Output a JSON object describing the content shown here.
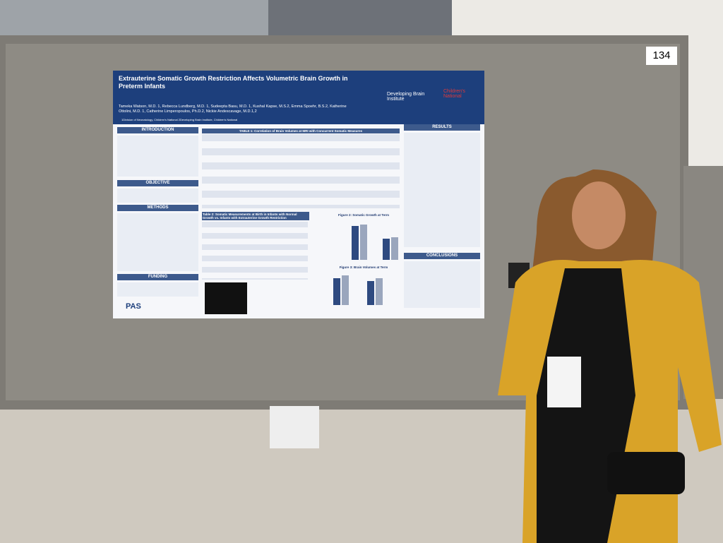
{
  "booth_number": "134",
  "poster": {
    "title": "Extrauterine Somatic Growth Restriction Affects Volumetric Brain Growth in Preterm Infants",
    "authors": "Tameka Watson, M.D. 1, Rebecca Lundberg, M.D. 1, Sudeepta Basu, M.D. 1, Kushal Kapse, M.S.2, Emma Spoehr, B.S.2, Katherine Ottolini, M.D. 1, Catherine Limperopoulos, Ph.D.2, Nickie Andescavage, M.D.1,2",
    "affiliations": "1Division of Neonatology, Children's National    2Developing Brain Institute, Children's National",
    "logos": [
      "Developing Brain Institute",
      "Children's National",
      "PAS"
    ],
    "sections": [
      "INTRODUCTION",
      "OBJECTIVE",
      "METHODS",
      "FUNDING",
      "RESULTS",
      "CONCLUSIONS"
    ],
    "table1_title": "TABLE 1: Correlation of Brain Volumes at MRI with Concurrent Somatic Measures",
    "table2_title": "Table 2: Somatic Measurements at Birth in Infants with Normal Growth vs. Infants with Extrauterine Growth Restriction",
    "figure2_title": "Figure 2: Somatic Growth at Term",
    "figure3_title": "Figure 3: Brain Volumes at Term"
  }
}
